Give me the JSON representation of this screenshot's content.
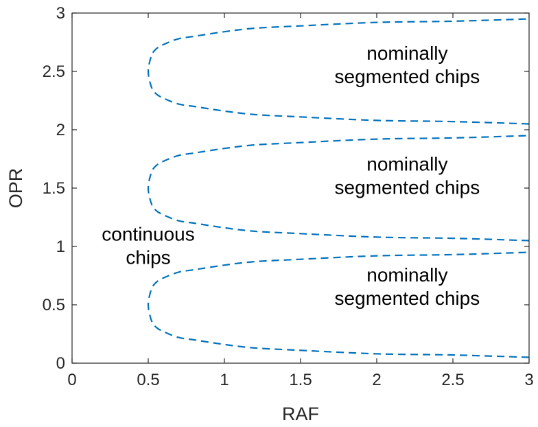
{
  "chart_data": {
    "type": "line",
    "xlabel": "RAF",
    "ylabel": "OPR",
    "xlim": [
      0,
      3
    ],
    "ylim": [
      0,
      3
    ],
    "x_ticks": [
      "0",
      "0.5",
      "1",
      "1.5",
      "2",
      "2.5",
      "3"
    ],
    "y_ticks": [
      "0",
      "0.5",
      "1",
      "1.5",
      "2",
      "2.5",
      "3"
    ],
    "grid": false,
    "line_style": "dashed",
    "line_color": "#0072BD",
    "series": [
      {
        "boundary_center_opr": 0.5,
        "x": [
          3.0,
          2.5,
          2.0,
          1.5,
          1.2,
          1.0,
          0.8,
          0.7,
          0.6,
          0.55,
          0.52,
          0.5,
          0.52,
          0.55,
          0.6,
          0.7,
          0.8,
          1.0,
          1.2,
          1.5,
          2.0,
          2.5,
          3.0
        ],
        "y": [
          0.05,
          0.07,
          0.08,
          0.11,
          0.13,
          0.16,
          0.2,
          0.22,
          0.27,
          0.31,
          0.37,
          0.5,
          0.63,
          0.69,
          0.73,
          0.78,
          0.8,
          0.84,
          0.87,
          0.89,
          0.92,
          0.93,
          0.95
        ]
      },
      {
        "boundary_center_opr": 1.5,
        "x": [
          3.0,
          2.5,
          2.0,
          1.5,
          1.2,
          1.0,
          0.8,
          0.7,
          0.6,
          0.55,
          0.52,
          0.5,
          0.52,
          0.55,
          0.6,
          0.7,
          0.8,
          1.0,
          1.2,
          1.5,
          2.0,
          2.5,
          3.0
        ],
        "y": [
          1.05,
          1.07,
          1.08,
          1.11,
          1.13,
          1.16,
          1.2,
          1.22,
          1.27,
          1.31,
          1.37,
          1.5,
          1.63,
          1.69,
          1.73,
          1.78,
          1.8,
          1.84,
          1.87,
          1.89,
          1.92,
          1.93,
          1.95
        ]
      },
      {
        "boundary_center_opr": 2.5,
        "x": [
          3.0,
          2.5,
          2.0,
          1.5,
          1.2,
          1.0,
          0.8,
          0.7,
          0.6,
          0.55,
          0.52,
          0.5,
          0.52,
          0.55,
          0.6,
          0.7,
          0.8,
          1.0,
          1.2,
          1.5,
          2.0,
          2.5,
          3.0
        ],
        "y": [
          2.05,
          2.07,
          2.08,
          2.11,
          2.13,
          2.16,
          2.2,
          2.22,
          2.27,
          2.31,
          2.37,
          2.5,
          2.63,
          2.69,
          2.73,
          2.78,
          2.8,
          2.84,
          2.87,
          2.89,
          2.92,
          2.93,
          2.95
        ]
      }
    ],
    "annotations": [
      {
        "lines": [
          "nominally",
          "segmented chips"
        ],
        "x": 2.2,
        "y": 2.5
      },
      {
        "lines": [
          "nominally",
          "segmented chips"
        ],
        "x": 2.2,
        "y": 1.55
      },
      {
        "lines": [
          "nominally",
          "segmented chips"
        ],
        "x": 2.2,
        "y": 0.6
      },
      {
        "lines": [
          "continuous",
          "chips"
        ],
        "x": 0.5,
        "y": 0.95
      }
    ]
  }
}
